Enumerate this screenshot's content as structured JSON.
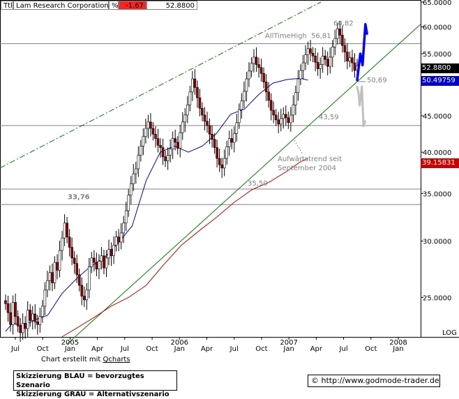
{
  "header": {
    "symbol_field": "Ttl",
    "name": "Lam Research Corporation",
    "pct_symbol": "%",
    "change": "-1.67",
    "last": "52.8800"
  },
  "credit": {
    "prefix": "Chart erstellt mit ",
    "tool": "Qcharts"
  },
  "legend": {
    "line1": "Skizzierung BLAU = bevorzugtes Szenario",
    "line2": "Skizzierung GRAU = Alternativszenario"
  },
  "url": {
    "symbol": "©",
    "text": "http://www.godmode-trader.de"
  },
  "colors": {
    "blue_scenario": "#0000ff",
    "grey_scenario": "#c0c0c0",
    "ma_short": "#0000cc",
    "ma_long": "#cc0000",
    "trendline": "#008000",
    "channel": "#008000",
    "candle_up": "#ffffff",
    "candle_down": "#990000"
  },
  "chart_data": {
    "type": "candlestick",
    "y_scale": "log",
    "y_axis_label": "LOG",
    "ylim": [
      22.0,
      65.0
    ],
    "y_ticks": [
      "65.0000",
      "60.0000",
      "55.0000",
      "50.0000",
      "45.0000",
      "40.0000",
      "35.0000",
      "30.0000",
      "25.0000"
    ],
    "x_ticks": [
      {
        "month": "Jul",
        "year": ""
      },
      {
        "month": "Oct",
        "year": ""
      },
      {
        "month": "Jan",
        "year": "2005"
      },
      {
        "month": "Apr",
        "year": ""
      },
      {
        "month": "Jul",
        "year": ""
      },
      {
        "month": "Oct",
        "year": ""
      },
      {
        "month": "Jan",
        "year": "2006"
      },
      {
        "month": "Apr",
        "year": ""
      },
      {
        "month": "Jul",
        "year": ""
      },
      {
        "month": "Oct",
        "year": ""
      },
      {
        "month": "Jan",
        "year": "2007"
      },
      {
        "month": "Apr",
        "year": ""
      },
      {
        "month": "Jul",
        "year": ""
      },
      {
        "month": "Oct",
        "year": ""
      },
      {
        "month": "Jan",
        "year": "2008"
      }
    ],
    "price_tags": [
      {
        "label": "52.8800",
        "value": 52.88,
        "bg": "#000000"
      },
      {
        "label": "50.49759",
        "value": 50.49759,
        "bg": "#0000cc"
      },
      {
        "label": "39.15831",
        "value": 39.15831,
        "bg": "#cc0000"
      }
    ],
    "horizontal_levels": [
      {
        "value": 56.81,
        "label": "56,81",
        "note": "AllTimeHigh"
      },
      {
        "value": 43.59,
        "label": "43,59",
        "note": ""
      },
      {
        "value": 35.5,
        "label": "35,50",
        "note": ""
      },
      {
        "value": 33.76,
        "label": "33,76",
        "note": ""
      }
    ],
    "annotations": [
      {
        "text": "60,82",
        "value": 60.82
      },
      {
        "text": "50,69",
        "value": 50.69
      },
      {
        "text": "Aufwärtstrend seit",
        "value": 39.3
      },
      {
        "text": "September 2004",
        "value": 38.2
      }
    ],
    "trendline": {
      "x": [
        0.175,
        1.0
      ],
      "y": [
        21.5,
        60.5
      ]
    },
    "channel_line": {
      "x": [
        0.0,
        0.75
      ],
      "y": [
        38.0,
        65.0
      ]
    },
    "scenario_blue": {
      "x": [
        0.0,
        0.05,
        0.085,
        0.13,
        0.155
      ],
      "y": [
        50.5,
        55.0,
        53.0,
        60.5,
        58.7
      ]
    },
    "scenario_grey": {
      "x": [
        0.0,
        0.02,
        0.04,
        0.075,
        0.1,
        0.125
      ],
      "y": [
        49.4,
        48.5,
        46.5,
        49.5,
        43.5,
        44.2
      ]
    },
    "ma_short": {
      "t": [
        0.0,
        0.02,
        0.05,
        0.08,
        0.12,
        0.16,
        0.2,
        0.24,
        0.28,
        0.32,
        0.36,
        0.4,
        0.44,
        0.48,
        0.52,
        0.56,
        0.6,
        0.64,
        0.68,
        0.72,
        0.76,
        0.8,
        0.84,
        0.86
      ],
      "v": [
        22.4,
        23.0,
        22.8,
        23.2,
        23.6,
        25.3,
        26.5,
        27.6,
        28.4,
        29.8,
        31.5,
        36.5,
        40.0,
        40.8,
        40.0,
        40.8,
        42.5,
        45.2,
        46.0,
        48.2,
        50.0,
        50.6,
        50.8,
        50.5
      ]
    },
    "ma_long": {
      "t": [
        0.16,
        0.2,
        0.25,
        0.3,
        0.35,
        0.4,
        0.45,
        0.5,
        0.55,
        0.6,
        0.65,
        0.7,
        0.75,
        0.8,
        0.84,
        0.86
      ],
      "v": [
        22.0,
        22.6,
        23.4,
        24.3,
        25.0,
        26.0,
        27.8,
        29.6,
        31.0,
        32.4,
        34.0,
        35.4,
        36.3,
        37.6,
        38.8,
        39.2
      ]
    },
    "weekly_closes": [
      24.5,
      23.8,
      22.9,
      24.6,
      23.5,
      22.8,
      22.3,
      23.0,
      22.6,
      24.0,
      23.2,
      23.7,
      23.1,
      22.9,
      23.5,
      24.3,
      25.6,
      26.4,
      27.1,
      26.2,
      28.0,
      27.3,
      29.1,
      30.3,
      31.8,
      30.4,
      29.4,
      28.4,
      27.9,
      26.9,
      26.0,
      25.1,
      24.8,
      25.6,
      27.6,
      28.4,
      28.0,
      27.4,
      28.1,
      28.6,
      27.5,
      28.4,
      29.2,
      28.6,
      29.6,
      30.4,
      29.9,
      30.8,
      31.8,
      33.1,
      34.8,
      36.1,
      37.3,
      37.9,
      39.6,
      40.8,
      42.1,
      43.2,
      44.1,
      43.2,
      42.4,
      41.8,
      40.9,
      40.6,
      39.4,
      38.9,
      39.6,
      40.4,
      41.8,
      41.3,
      40.5,
      42.6,
      44.1,
      45.1,
      46.6,
      48.6,
      50.7,
      49.3,
      47.7,
      46.1,
      45.1,
      44.2,
      43.6,
      42.4,
      41.7,
      40.6,
      39.2,
      38.4,
      38.0,
      39.2,
      40.7,
      41.8,
      41.3,
      42.5,
      44.0,
      45.9,
      47.2,
      48.7,
      50.7,
      52.0,
      53.3,
      54.4,
      53.1,
      52.6,
      51.6,
      50.2,
      48.6,
      47.3,
      45.8,
      45.1,
      44.4,
      43.8,
      44.6,
      45.2,
      44.7,
      44.0,
      45.1,
      46.6,
      48.5,
      50.7,
      52.1,
      53.4,
      54.8,
      55.9,
      55.1,
      54.6,
      53.5,
      52.4,
      53.1,
      54.6,
      54.0,
      52.8,
      54.4,
      56.2,
      57.8,
      59.6,
      58.4,
      56.5,
      55.3,
      53.7,
      54.3,
      53.4,
      52.1,
      52.88
    ]
  }
}
